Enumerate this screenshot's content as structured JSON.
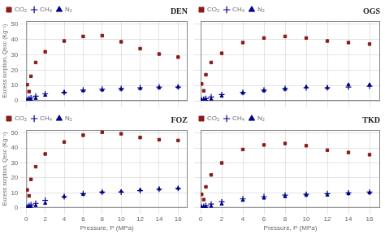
{
  "chart_data": [
    {
      "type": "scatter",
      "annotations": [
        "DEN"
      ],
      "x": [
        0.1,
        0.3,
        0.5,
        1.0,
        2.0,
        4.0,
        6.0,
        8.0,
        10.0,
        12.0,
        14.0,
        16.0
      ],
      "series": [
        {
          "name": "CO₂",
          "color": "#8B1A1A",
          "marker": "square",
          "values": [
            10.5,
            6.0,
            16.0,
            25.0,
            32.0,
            39.0,
            42.0,
            42.5,
            38.5,
            34.0,
            30.5,
            28.5
          ]
        },
        {
          "name": "CH₄",
          "color": "#00008B",
          "marker": "plus",
          "values": [
            0.5,
            1.5,
            2.0,
            3.0,
            4.5,
            5.5,
            7.0,
            7.5,
            8.0,
            8.5,
            9.0,
            9.0
          ]
        },
        {
          "name": "N₂",
          "color": "#00008B",
          "marker": "triangle",
          "values": [
            0.2,
            0.5,
            0.8,
            1.5,
            3.5,
            5.5,
            6.5,
            7.0,
            7.5,
            8.0,
            8.5,
            9.0
          ]
        }
      ],
      "xlim": [
        0,
        17
      ],
      "ylim": [
        0,
        52
      ],
      "xticks": [
        0,
        2,
        4,
        6,
        8,
        10,
        12,
        14,
        16
      ],
      "yticks": [
        0,
        10,
        20,
        30,
        40,
        50
      ],
      "ylabel": "Excess sorption, Qexc (Kg⁻¹)",
      "grid": true,
      "legend": "upper left",
      "tick_labels": "y"
    },
    {
      "type": "scatter",
      "annotations": [
        "OGS"
      ],
      "x": [
        0.1,
        0.3,
        0.5,
        1.0,
        2.0,
        4.0,
        6.0,
        8.0,
        10.0,
        12.0,
        14.0,
        16.0
      ],
      "series": [
        {
          "name": "CO₂",
          "color": "#8B1A1A",
          "marker": "square",
          "values": [
            11.0,
            6.5,
            17.0,
            25.0,
            31.0,
            38.0,
            41.0,
            42.0,
            41.0,
            39.0,
            38.0,
            37.0
          ]
        },
        {
          "name": "CH₄",
          "color": "#00008B",
          "marker": "plus",
          "values": [
            0.5,
            1.0,
            1.5,
            2.5,
            4.0,
            5.5,
            7.0,
            8.0,
            8.5,
            8.5,
            9.0,
            9.5
          ]
        },
        {
          "name": "N₂",
          "color": "#00008B",
          "marker": "triangle",
          "values": [
            0.2,
            0.4,
            0.6,
            1.0,
            3.0,
            5.0,
            6.5,
            7.5,
            9.0,
            8.5,
            10.5,
            10.5
          ]
        }
      ],
      "xlim": [
        0,
        17
      ],
      "ylim": [
        0,
        52
      ],
      "xticks": [
        0,
        2,
        4,
        6,
        8,
        10,
        12,
        14,
        16
      ],
      "yticks": [
        0,
        10,
        20,
        30,
        40,
        50
      ],
      "grid": true,
      "legend": "upper left",
      "tick_labels": false
    },
    {
      "type": "scatter",
      "annotations": [
        "FOZ"
      ],
      "x": [
        0.1,
        0.3,
        0.5,
        1.0,
        2.0,
        4.0,
        6.0,
        8.0,
        10.0,
        12.0,
        14.0,
        16.0
      ],
      "series": [
        {
          "name": "CO₂",
          "color": "#8B1A1A",
          "marker": "square",
          "values": [
            12.0,
            8.0,
            19.0,
            27.5,
            36.0,
            44.0,
            48.5,
            50.5,
            49.5,
            47.0,
            45.5,
            45.0
          ]
        },
        {
          "name": "CH₄",
          "color": "#00008B",
          "marker": "plus",
          "values": [
            0.5,
            1.5,
            2.0,
            3.0,
            5.0,
            7.5,
            9.5,
            10.5,
            10.5,
            11.5,
            12.5,
            13.0
          ]
        },
        {
          "name": "N₂",
          "color": "#00008B",
          "marker": "triangle",
          "values": [
            0.2,
            0.5,
            0.8,
            1.5,
            3.0,
            7.5,
            9.0,
            10.5,
            11.0,
            12.0,
            12.5,
            13.0
          ]
        }
      ],
      "xlim": [
        0,
        17
      ],
      "ylim": [
        0,
        52
      ],
      "xticks": [
        0,
        2,
        4,
        6,
        8,
        10,
        12,
        14,
        16
      ],
      "yticks": [
        0,
        10,
        20,
        30,
        40,
        50
      ],
      "xlabel": "Pressure, P (MPa)",
      "ylabel": "Excess sorption, Qexc (Kg⁻¹)",
      "grid": true,
      "legend": "upper left"
    },
    {
      "type": "scatter",
      "annotations": [
        "TKD"
      ],
      "x": [
        0.1,
        0.3,
        0.5,
        1.0,
        2.0,
        4.0,
        6.0,
        8.0,
        10.0,
        12.0,
        14.0,
        16.0
      ],
      "series": [
        {
          "name": "CO₂",
          "color": "#8B1A1A",
          "marker": "square",
          "values": [
            9.0,
            5.5,
            14.0,
            22.0,
            30.0,
            39.0,
            42.0,
            43.0,
            41.5,
            38.5,
            37.0,
            35.5
          ]
        },
        {
          "name": "CH₄",
          "color": "#00008B",
          "marker": "plus",
          "values": [
            0.4,
            1.0,
            1.5,
            2.5,
            4.0,
            6.0,
            7.5,
            8.5,
            9.0,
            9.5,
            10.0,
            10.5
          ]
        },
        {
          "name": "N₂",
          "color": "#00008B",
          "marker": "triangle",
          "values": [
            0.2,
            0.4,
            0.6,
            1.0,
            2.5,
            5.0,
            6.5,
            7.5,
            8.5,
            8.5,
            9.5,
            10.0
          ]
        }
      ],
      "xlim": [
        0,
        17
      ],
      "ylim": [
        0,
        52
      ],
      "xticks": [
        0,
        2,
        4,
        6,
        8,
        10,
        12,
        14,
        16
      ],
      "yticks": [
        0,
        10,
        20,
        30,
        40,
        50
      ],
      "xlabel": "Pressure, P (MPa)",
      "grid": true,
      "legend": "upper left",
      "tick_labels": "x"
    }
  ]
}
